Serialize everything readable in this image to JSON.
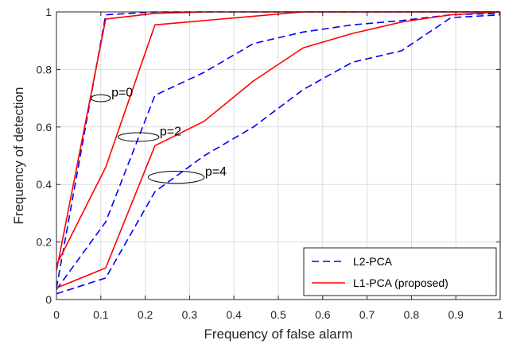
{
  "chart_data": {
    "type": "line",
    "title": "",
    "xlabel": "Frequency of false alarm",
    "ylabel": "Frequency of detection",
    "xlim": [
      0,
      1
    ],
    "ylim": [
      0,
      1
    ],
    "grid": true,
    "legend_position": "bottom-right",
    "x_ticks": [
      "0",
      "0.1",
      "0.2",
      "0.3",
      "0.4",
      "0.5",
      "0.6",
      "0.7",
      "0.8",
      "0.9",
      "1"
    ],
    "y_ticks": [
      "0",
      "0.2",
      "0.4",
      "0.6",
      "0.8",
      "1"
    ],
    "x_tick_values": [
      0,
      0.1,
      0.2,
      0.3,
      0.4,
      0.5,
      0.6,
      0.7,
      0.8,
      0.9,
      1
    ],
    "y_tick_values": [
      0,
      0.2,
      0.4,
      0.6,
      0.8,
      1
    ],
    "series": [
      {
        "name": "L2-PCA",
        "group": "p=0",
        "color": "#0000ff",
        "dash": "dashed",
        "x": [
          0,
          0.111,
          0.222,
          0.333,
          0.444,
          0.556,
          0.667,
          0.778,
          0.889,
          1
        ],
        "y": [
          0.04,
          0.99,
          1.0,
          1.0,
          1.0,
          1.0,
          1.0,
          1.0,
          1.0,
          1.0
        ]
      },
      {
        "name": "L1-PCA (proposed)",
        "group": "p=0",
        "color": "#ff0000",
        "dash": "solid",
        "x": [
          0,
          0.111,
          0.222,
          0.333,
          0.444,
          0.556,
          0.667,
          0.778,
          0.889,
          1
        ],
        "y": [
          0.1,
          0.975,
          0.995,
          1.0,
          1.0,
          1.0,
          1.0,
          1.0,
          1.0,
          1.0
        ]
      },
      {
        "name": "L2-PCA",
        "group": "p=2",
        "color": "#0000ff",
        "dash": "dashed",
        "x": [
          0,
          0.111,
          0.222,
          0.333,
          0.444,
          0.556,
          0.667,
          0.778,
          0.889,
          1
        ],
        "y": [
          0.035,
          0.27,
          0.71,
          0.79,
          0.89,
          0.93,
          0.955,
          0.97,
          0.99,
          0.995
        ]
      },
      {
        "name": "L1-PCA (proposed)",
        "group": "p=2",
        "color": "#ff0000",
        "dash": "solid",
        "x": [
          0,
          0.111,
          0.222,
          0.333,
          0.444,
          0.556,
          0.667,
          0.778,
          0.889,
          1
        ],
        "y": [
          0.12,
          0.46,
          0.955,
          0.97,
          0.985,
          1.0,
          1.0,
          1.0,
          1.0,
          1.0
        ]
      },
      {
        "name": "L2-PCA",
        "group": "p=4",
        "color": "#0000ff",
        "dash": "dashed",
        "x": [
          0,
          0.111,
          0.222,
          0.333,
          0.444,
          0.556,
          0.667,
          0.778,
          0.889,
          1
        ],
        "y": [
          0.02,
          0.075,
          0.375,
          0.5,
          0.6,
          0.73,
          0.825,
          0.865,
          0.98,
          0.99
        ]
      },
      {
        "name": "L1-PCA (proposed)",
        "group": "p=4",
        "color": "#ff0000",
        "dash": "solid",
        "x": [
          0,
          0.111,
          0.222,
          0.333,
          0.444,
          0.556,
          0.667,
          0.778,
          0.889,
          1
        ],
        "y": [
          0.04,
          0.11,
          0.535,
          0.62,
          0.76,
          0.875,
          0.925,
          0.965,
          0.99,
          1.0
        ]
      }
    ],
    "annotations": [
      {
        "text": "p=0",
        "ellipse_center": [
          0.1,
          0.7
        ],
        "ellipse_radius_data": [
          0.022,
          0.012
        ]
      },
      {
        "text": "p=2",
        "ellipse_center": [
          0.185,
          0.565
        ],
        "ellipse_radius_data": [
          0.046,
          0.015
        ]
      },
      {
        "text": "p=4",
        "ellipse_center": [
          0.27,
          0.425
        ],
        "ellipse_radius_data": [
          0.063,
          0.021
        ]
      }
    ],
    "legend": [
      {
        "label": "L2-PCA",
        "color": "#0000ff",
        "dash": "dashed"
      },
      {
        "label": "L1-PCA (proposed)",
        "color": "#ff0000",
        "dash": "solid"
      }
    ]
  }
}
